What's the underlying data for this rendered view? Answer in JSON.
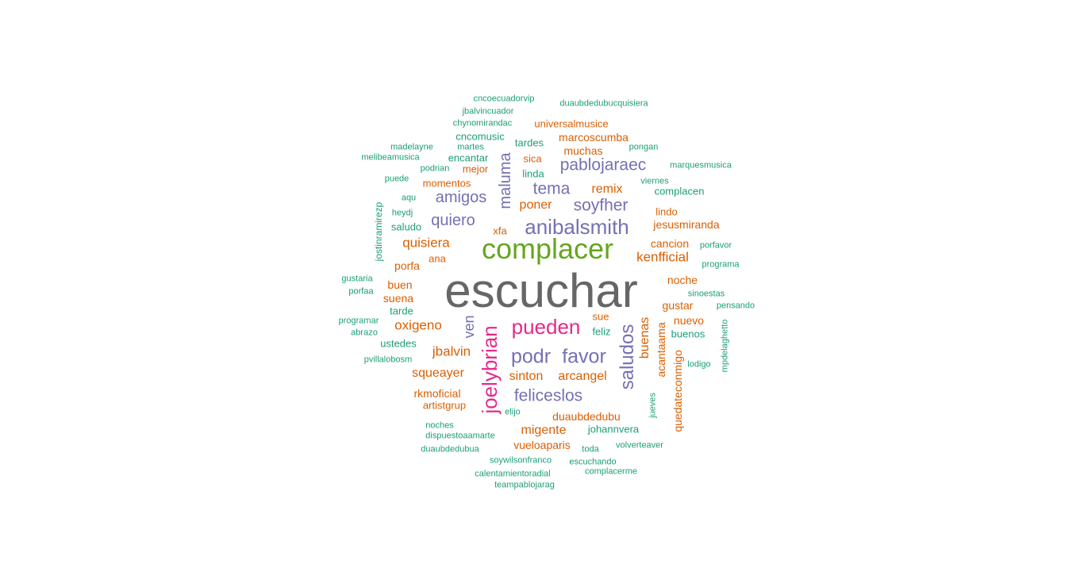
{
  "colors": {
    "grey": "#666666",
    "green": "#66a61e",
    "purple": "#7570b3",
    "magenta": "#e7298a",
    "orange": "#d95f02",
    "teal": "#1b9e77"
  },
  "words": [
    {
      "text": "escuchar",
      "color": "grey"
    },
    {
      "text": "complacer",
      "color": "green"
    },
    {
      "text": "anibalsmith",
      "color": "purple"
    },
    {
      "text": "pueden",
      "color": "magenta"
    },
    {
      "text": "joelybrian",
      "color": "magenta"
    },
    {
      "text": "podr",
      "color": "purple"
    },
    {
      "text": "favor",
      "color": "purple"
    },
    {
      "text": "saludos",
      "color": "purple"
    },
    {
      "text": "felicesl​os",
      "color": "purple"
    },
    {
      "text": "pablojaraec",
      "color": "purple"
    },
    {
      "text": "maluma",
      "color": "purple"
    },
    {
      "text": "tema",
      "color": "purple"
    },
    {
      "text": "soyfher",
      "color": "purple"
    },
    {
      "text": "amigos",
      "color": "purple"
    },
    {
      "text": "quiero",
      "color": "purple"
    },
    {
      "text": "ven",
      "color": "purple"
    },
    {
      "text": "quisiera",
      "color": "orange"
    },
    {
      "text": "kenfficial",
      "color": "orange"
    },
    {
      "text": "oxigeno",
      "color": "orange"
    },
    {
      "text": "jbalvin",
      "color": "orange"
    },
    {
      "text": "squeayer",
      "color": "orange"
    },
    {
      "text": "sinton",
      "color": "orange"
    },
    {
      "text": "arcangel",
      "color": "orange"
    },
    {
      "text": "migente",
      "color": "orange"
    },
    {
      "text": "duaubdedubu",
      "color": "orange"
    },
    {
      "text": "vueloaparis",
      "color": "orange"
    },
    {
      "text": "buenas",
      "color": "orange"
    },
    {
      "text": "poner",
      "color": "orange"
    },
    {
      "text": "remix",
      "color": "orange"
    },
    {
      "text": "marcoscumba",
      "color": "orange"
    },
    {
      "text": "muchas",
      "color": "orange"
    },
    {
      "text": "universalmusice",
      "color": "orange"
    },
    {
      "text": "mejor",
      "color": "orange"
    },
    {
      "text": "momentos",
      "color": "orange"
    },
    {
      "text": "sica",
      "color": "orange"
    },
    {
      "text": "lindo",
      "color": "orange"
    },
    {
      "text": "jesusmiranda",
      "color": "orange"
    },
    {
      "text": "cancion",
      "color": "orange"
    },
    {
      "text": "xfa",
      "color": "orange"
    },
    {
      "text": "porfa",
      "color": "orange"
    },
    {
      "text": "ana",
      "color": "orange"
    },
    {
      "text": "buen",
      "color": "orange"
    },
    {
      "text": "suena",
      "color": "orange"
    },
    {
      "text": "noche",
      "color": "orange"
    },
    {
      "text": "gustar",
      "color": "orange"
    },
    {
      "text": "nuevo",
      "color": "orange"
    },
    {
      "text": "sue",
      "color": "orange"
    },
    {
      "text": "acantaama",
      "color": "orange"
    },
    {
      "text": "quedateconmigo",
      "color": "orange"
    },
    {
      "text": "rkmoficial",
      "color": "orange"
    },
    {
      "text": "artistgrup",
      "color": "orange"
    },
    {
      "text": "cncoecuadorvip",
      "color": "teal"
    },
    {
      "text": "jbalvincuador",
      "color": "teal"
    },
    {
      "text": "chynomirandac",
      "color": "teal"
    },
    {
      "text": "duaubdedubucquisiera",
      "color": "teal"
    },
    {
      "text": "cncomusic",
      "color": "teal"
    },
    {
      "text": "tardes",
      "color": "teal"
    },
    {
      "text": "madelayne",
      "color": "teal"
    },
    {
      "text": "martes",
      "color": "teal"
    },
    {
      "text": "pongan",
      "color": "teal"
    },
    {
      "text": "melibeamusica",
      "color": "teal"
    },
    {
      "text": "encantar",
      "color": "teal"
    },
    {
      "text": "podrian",
      "color": "teal"
    },
    {
      "text": "marquesmusica",
      "color": "teal"
    },
    {
      "text": "linda",
      "color": "teal"
    },
    {
      "text": "puede",
      "color": "teal"
    },
    {
      "text": "viernes",
      "color": "teal"
    },
    {
      "text": "complacen",
      "color": "teal"
    },
    {
      "text": "aqu",
      "color": "teal"
    },
    {
      "text": "heydj",
      "color": "teal"
    },
    {
      "text": "saludo",
      "color": "teal"
    },
    {
      "text": "jostinramirezp",
      "color": "teal"
    },
    {
      "text": "porfavor",
      "color": "teal"
    },
    {
      "text": "programa",
      "color": "teal"
    },
    {
      "text": "gustaria",
      "color": "teal"
    },
    {
      "text": "porfaa",
      "color": "teal"
    },
    {
      "text": "sinoestas",
      "color": "teal"
    },
    {
      "text": "tarde",
      "color": "teal"
    },
    {
      "text": "pensando",
      "color": "teal"
    },
    {
      "text": "programar",
      "color": "teal"
    },
    {
      "text": "abrazo",
      "color": "teal"
    },
    {
      "text": "ustedes",
      "color": "teal"
    },
    {
      "text": "feliz",
      "color": "teal"
    },
    {
      "text": "buenos",
      "color": "teal"
    },
    {
      "text": "mpdelaghetto",
      "color": "teal"
    },
    {
      "text": "pvillalobosm",
      "color": "teal"
    },
    {
      "text": "lodigo",
      "color": "teal"
    },
    {
      "text": "elijo",
      "color": "teal"
    },
    {
      "text": "jueves",
      "color": "teal"
    },
    {
      "text": "noches",
      "color": "teal"
    },
    {
      "text": "johannvera",
      "color": "teal"
    },
    {
      "text": "dispuestoaamarte",
      "color": "teal"
    },
    {
      "text": "duaubdedubua",
      "color": "teal"
    },
    {
      "text": "toda",
      "color": "teal"
    },
    {
      "text": "volverteaver",
      "color": "teal"
    },
    {
      "text": "soywilsonfranco",
      "color": "teal"
    },
    {
      "text": "escuchando",
      "color": "teal"
    },
    {
      "text": "calentamientoradial",
      "color": "teal"
    },
    {
      "text": "complacerme",
      "color": "teal"
    },
    {
      "text": "teampablojarag",
      "color": "teal"
    }
  ]
}
